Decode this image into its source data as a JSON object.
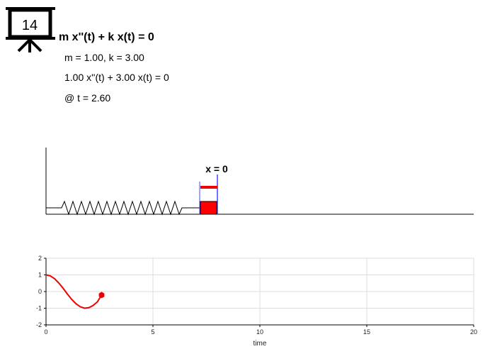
{
  "badge": {
    "number": "14"
  },
  "equation": {
    "title": "m x''(t) + k x(t) = 0",
    "params": "m = 1.00, k = 3.00",
    "substituted": "1.00 x''(t) + 3.00 x(t) = 0",
    "time": "@ t = 2.60"
  },
  "spring_scene": {
    "label": "x = 0"
  },
  "chart_data": {
    "type": "line",
    "xlabel": "time",
    "ylabel": "",
    "xlim": [
      0,
      20
    ],
    "ylim": [
      -2,
      2
    ],
    "x_ticks": [
      "0",
      "5",
      "10",
      "15",
      "20"
    ],
    "y_ticks": [
      "2",
      "1",
      "0",
      "-1",
      "-2"
    ],
    "grid": true,
    "series": [
      {
        "color": "#ee0000",
        "x": [
          0,
          0.2,
          0.4,
          0.6,
          0.8,
          1.0,
          1.2,
          1.4,
          1.6,
          1.8,
          2.0,
          2.2,
          2.4,
          2.6
        ],
        "y": [
          1.0,
          0.94,
          0.77,
          0.51,
          0.19,
          -0.15,
          -0.47,
          -0.73,
          -0.91,
          -1.0,
          -0.97,
          -0.84,
          -0.62,
          -0.21
        ]
      }
    ],
    "marker": {
      "x": 2.6,
      "y": -0.21
    }
  }
}
